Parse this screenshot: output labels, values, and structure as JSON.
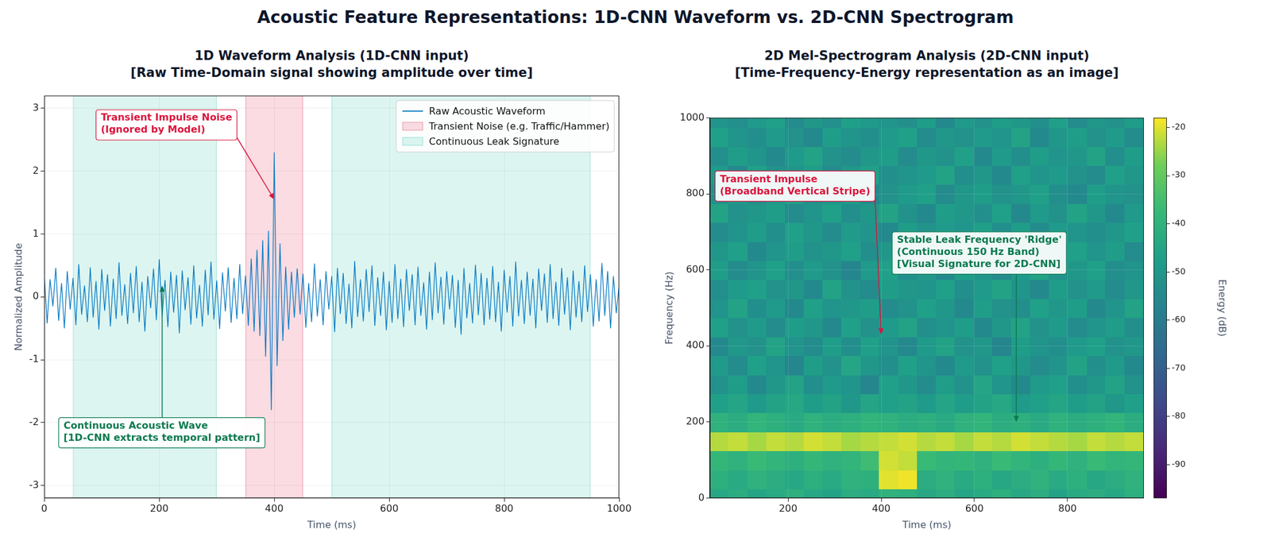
{
  "title": "Acoustic Feature Representations: 1D-CNN Waveform vs. 2D-CNN Spectrogram",
  "chart_data": [
    {
      "type": "line",
      "title": "1D Waveform Analysis (1D-CNN input)",
      "subtitle": "[Raw Time-Domain signal showing amplitude over time]",
      "x_label": "Time (ms)",
      "y_label": "Normalized Amplitude",
      "x": [
        0,
        5,
        10,
        15,
        20,
        25,
        30,
        35,
        40,
        45,
        50,
        55,
        60,
        65,
        70,
        75,
        80,
        85,
        90,
        95,
        100,
        105,
        110,
        115,
        120,
        125,
        130,
        135,
        140,
        145,
        150,
        155,
        160,
        165,
        170,
        175,
        180,
        185,
        190,
        195,
        200,
        205,
        210,
        215,
        220,
        225,
        230,
        235,
        240,
        245,
        250,
        255,
        260,
        265,
        270,
        275,
        280,
        285,
        290,
        295,
        300,
        305,
        310,
        315,
        320,
        325,
        330,
        335,
        340,
        345,
        350,
        355,
        360,
        365,
        370,
        375,
        380,
        385,
        390,
        395,
        400,
        405,
        410,
        415,
        420,
        425,
        430,
        435,
        440,
        445,
        450,
        455,
        460,
        465,
        470,
        475,
        480,
        485,
        490,
        495,
        500,
        505,
        510,
        515,
        520,
        525,
        530,
        535,
        540,
        545,
        550,
        555,
        560,
        565,
        570,
        575,
        580,
        585,
        590,
        595,
        600,
        605,
        610,
        615,
        620,
        625,
        630,
        635,
        640,
        645,
        650,
        655,
        660,
        665,
        670,
        675,
        680,
        685,
        690,
        695,
        700,
        705,
        710,
        715,
        720,
        725,
        730,
        735,
        740,
        745,
        750,
        755,
        760,
        765,
        770,
        775,
        780,
        785,
        790,
        795,
        800,
        805,
        810,
        815,
        820,
        825,
        830,
        835,
        840,
        845,
        850,
        855,
        860,
        865,
        870,
        875,
        880,
        885,
        890,
        895,
        900,
        905,
        910,
        915,
        920,
        925,
        930,
        935,
        940,
        945,
        950,
        955,
        960,
        965,
        970,
        975,
        980,
        985,
        990,
        995,
        1000
      ],
      "series": [
        {
          "name": "Raw Acoustic Waveform",
          "color": "#0a7bc4",
          "values": [
            0.35,
            -0.42,
            0.28,
            -0.15,
            0.46,
            -0.38,
            0.22,
            -0.5,
            0.41,
            -0.2,
            0.3,
            -0.45,
            0.52,
            -0.28,
            0.18,
            -0.4,
            0.47,
            -0.33,
            0.25,
            -0.52,
            0.44,
            -0.22,
            0.36,
            -0.47,
            0.29,
            -0.35,
            0.55,
            -0.3,
            0.2,
            -0.43,
            0.38,
            -0.26,
            0.49,
            -0.4,
            0.24,
            -0.55,
            0.33,
            -0.18,
            0.45,
            -0.37,
            0.6,
            -0.3,
            0.27,
            -0.48,
            0.4,
            -0.25,
            0.35,
            -0.58,
            0.42,
            -0.21,
            0.31,
            -0.44,
            0.5,
            -0.34,
            0.19,
            -0.47,
            0.43,
            -0.29,
            0.56,
            -0.36,
            0.26,
            -0.51,
            0.39,
            -0.23,
            0.47,
            -0.41,
            0.3,
            -0.35,
            0.52,
            -0.27,
            0.34,
            -0.46,
            0.61,
            -0.55,
            0.75,
            -0.62,
            0.9,
            -0.95,
            1.05,
            -1.8,
            2.3,
            -1.1,
            0.85,
            -0.7,
            0.48,
            -0.52,
            0.4,
            -0.33,
            0.45,
            -0.28,
            0.37,
            -0.49,
            0.22,
            -0.4,
            0.53,
            -0.31,
            0.28,
            -0.45,
            0.41,
            -0.2,
            0.33,
            -0.56,
            0.46,
            -0.27,
            0.38,
            -0.43,
            0.21,
            -0.5,
            0.57,
            -0.32,
            0.28,
            -0.39,
            0.44,
            -0.24,
            0.5,
            -0.46,
            0.31,
            -0.3,
            0.4,
            -0.53,
            0.25,
            -0.41,
            0.52,
            -0.35,
            0.29,
            -0.48,
            0.44,
            -0.22,
            0.36,
            -0.45,
            0.48,
            -0.3,
            0.23,
            -0.52,
            0.4,
            -0.37,
            0.55,
            -0.26,
            0.32,
            -0.44,
            0.41,
            -0.2,
            0.35,
            -0.49,
            0.27,
            -0.6,
            0.46,
            -0.34,
            0.22,
            -0.42,
            0.51,
            -0.29,
            0.38,
            -0.45,
            0.3,
            -0.36,
            0.49,
            -0.4,
            0.24,
            -0.55,
            0.43,
            -0.25,
            0.33,
            -0.47,
            0.56,
            -0.31,
            0.27,
            -0.43,
            0.4,
            -0.3,
            0.29,
            -0.5,
            0.45,
            -0.22,
            0.37,
            -0.41,
            0.52,
            -0.35,
            0.24,
            -0.46,
            0.46,
            -0.28,
            0.31,
            -0.53,
            0.42,
            -0.33,
            0.25,
            -0.4,
            0.5,
            -0.24,
            0.36,
            -0.47,
            0.28,
            -0.39,
            0.54,
            -0.3,
            0.41,
            -0.5,
            0.33,
            -0.26,
            0.2
          ]
        }
      ],
      "regions": [
        {
          "name": "Transient Noise (e.g. Traffic/Hammer)",
          "color": "#dc143c",
          "spans": [
            [
              350,
              450
            ]
          ]
        },
        {
          "name": "Continuous Leak Signature",
          "color": "#1abc9c",
          "spans": [
            [
              50,
              300
            ],
            [
              500,
              950
            ]
          ]
        }
      ],
      "annotations": [
        {
          "text": "Transient Impulse Noise\n(Ignored by Model)",
          "color": "#dc143c",
          "points_to": [
            400,
            1.55
          ]
        },
        {
          "text": "Continuous Acoustic Wave\n[1D-CNN extracts temporal pattern]",
          "color": "#0b7a50",
          "points_to": [
            205,
            0.18
          ]
        }
      ],
      "xlim": [
        0,
        1000
      ],
      "xticks": [
        0,
        200,
        400,
        600,
        800,
        1000
      ],
      "ylim": [
        -3.2,
        3.2
      ],
      "yticks": [
        -3,
        -2,
        -1,
        0,
        1,
        2,
        3
      ],
      "grid": true,
      "legend": "upper right"
    },
    {
      "type": "heatmap",
      "title": "2D Mel-Spectrogram Analysis (2D-CNN input)",
      "subtitle": "[Time-Frequency-Energy representation as an image]",
      "x_label": "Time (ms)",
      "y_label": "Frequency (Hz)",
      "x_edges": [
        32,
        72,
        113,
        153,
        194,
        234,
        275,
        315,
        356,
        396,
        437,
        477,
        518,
        558,
        599,
        639,
        680,
        720,
        761,
        801,
        842,
        882,
        923,
        964
      ],
      "y_edges": [
        0,
        25,
        75,
        125,
        175,
        225,
        275,
        325,
        375,
        425,
        475,
        525,
        575,
        625,
        675,
        725,
        775,
        825,
        875,
        925,
        975,
        1000
      ],
      "cells": [
        [
          -44,
          -42,
          -45,
          -43,
          -41,
          -44,
          -46,
          -42,
          -43,
          -40,
          -41,
          -44,
          -42,
          -45,
          -43,
          -41,
          -44,
          -42,
          -46,
          -43,
          -42,
          -44,
          -41
        ],
        [
          -41,
          -43,
          -40,
          -42,
          -44,
          -41,
          -43,
          -40,
          -41,
          -20,
          -19,
          -42,
          -40,
          -43,
          -41,
          -44,
          -42,
          -40,
          -43,
          -41,
          -44,
          -42,
          -40
        ],
        [
          -38,
          -40,
          -37,
          -39,
          -41,
          -38,
          -40,
          -39,
          -36,
          -21,
          -22,
          -37,
          -39,
          -38,
          -40,
          -37,
          -39,
          -41,
          -38,
          -40,
          -37,
          -39,
          -38
        ],
        [
          -23,
          -22,
          -24,
          -22,
          -23,
          -21,
          -22,
          -24,
          -23,
          -22,
          -21,
          -23,
          -22,
          -24,
          -22,
          -23,
          -21,
          -22,
          -23,
          -24,
          -22,
          -23,
          -22
        ],
        [
          -40,
          -42,
          -39,
          -41,
          -43,
          -40,
          -42,
          -41,
          -39,
          -40,
          -42,
          -41,
          -43,
          -40,
          -39,
          -42,
          -41,
          -43,
          -40,
          -42,
          -41,
          -39,
          -42
        ],
        [
          -47,
          -45,
          -49,
          -46,
          -44,
          -48,
          -46,
          -50,
          -45,
          -47,
          -46,
          -49,
          -45,
          -48,
          -46,
          -44,
          -49,
          -47,
          -45,
          -48,
          -46,
          -50,
          -47
        ],
        [
          -52,
          -48,
          -55,
          -50,
          -46,
          -53,
          -49,
          -51,
          -56,
          -47,
          -50,
          -54,
          -48,
          -52,
          -45,
          -51,
          -55,
          -49,
          -47,
          -53,
          -50,
          -46,
          -52
        ],
        [
          -49,
          -54,
          -47,
          -51,
          -56,
          -48,
          -52,
          -45,
          -50,
          -53,
          -47,
          -51,
          -55,
          -49,
          -52,
          -47,
          -50,
          -54,
          -51,
          -46,
          -53,
          -49,
          -55
        ],
        [
          -55,
          -50,
          -52,
          -46,
          -51,
          -54,
          -48,
          -53,
          -47,
          -51,
          -55,
          -49,
          -46,
          -52,
          -50,
          -56,
          -48,
          -51,
          -53,
          -49,
          -47,
          -52,
          -50
        ],
        [
          -47,
          -52,
          -49,
          -54,
          -48,
          -50,
          -55,
          -47,
          -52,
          -49,
          -46,
          -53,
          -51,
          -48,
          -55,
          -50,
          -46,
          -52,
          -49,
          -54,
          -51,
          -48,
          -53
        ],
        [
          -51,
          -46,
          -53,
          -49,
          -55,
          -47,
          -51,
          -50,
          -48,
          -54,
          -52,
          -47,
          -50,
          -55,
          -48,
          -52,
          -53,
          -47,
          -50,
          -48,
          -55,
          -51,
          -46
        ],
        [
          -53,
          -49,
          -47,
          -52,
          -50,
          -55,
          -46,
          -52,
          -54,
          -48,
          -50,
          -51,
          -47,
          -53,
          -49,
          -46,
          -51,
          -55,
          -48,
          -52,
          -49,
          -54,
          -50
        ],
        [
          -48,
          -54,
          -51,
          -47,
          -53,
          -49,
          -52,
          -56,
          -49,
          -47,
          -53,
          -50,
          -55,
          -48,
          -51,
          -54,
          -49,
          -46,
          -52,
          -50,
          -47,
          -53,
          -51
        ],
        [
          -50,
          -47,
          -55,
          -51,
          -48,
          -52,
          -50,
          -47,
          -53,
          -50,
          -55,
          -48,
          -52,
          -46,
          -54,
          -49,
          -52,
          -50,
          -55,
          -47,
          -51,
          -48,
          -54
        ],
        [
          -54,
          -51,
          -48,
          -53,
          -47,
          -50,
          -54,
          -49,
          -51,
          -55,
          -48,
          -52,
          -49,
          -51,
          -47,
          -53,
          -48,
          -54,
          -49,
          -51,
          -53,
          -50,
          -47
        ],
        [
          -46,
          -52,
          -50,
          -48,
          -54,
          -51,
          -47,
          -53,
          -50,
          -46,
          -52,
          -55,
          -48,
          -50,
          -53,
          -47,
          -55,
          -49,
          -52,
          -46,
          -50,
          -55,
          -49
        ],
        [
          -52,
          -49,
          -54,
          -50,
          -47,
          -53,
          -51,
          -48,
          -55,
          -52,
          -49,
          -47,
          -54,
          -50,
          -48,
          -52,
          -50,
          -47,
          -53,
          -55,
          -48,
          -51,
          -52
        ],
        [
          -49,
          -55,
          -47,
          -52,
          -51,
          -48,
          -54,
          -50,
          -47,
          -53,
          -51,
          -49,
          -46,
          -53,
          -50,
          -55,
          -47,
          -51,
          -49,
          -52,
          -54,
          -47,
          -50
        ],
        [
          -53,
          -48,
          -51,
          -55,
          -49,
          -46,
          -52,
          -54,
          -50,
          -48,
          -54,
          -50,
          -52,
          -47,
          -55,
          -49,
          -53,
          -48,
          -51,
          -50,
          -46,
          -53,
          -48
        ],
        [
          -47,
          -51,
          -53,
          -49,
          -52,
          -55,
          -48,
          -51,
          -53,
          -49,
          -47,
          -54,
          -50,
          -52,
          -49,
          -51,
          -46,
          -55,
          -50,
          -48,
          -52,
          -49,
          -54
        ],
        [
          -51,
          -53,
          -49,
          -47,
          -54,
          -50,
          -53,
          -47,
          -49,
          -51,
          -53,
          -48,
          -55,
          -49,
          -52,
          -48,
          -50,
          -53,
          -47,
          -54,
          -50,
          -52,
          -48
        ]
      ],
      "colorbar": {
        "label": "Energy (dB)",
        "range": [
          -97,
          -18
        ],
        "ticks": [
          -90,
          -80,
          -70,
          -60,
          -50,
          -40,
          -30,
          -20
        ]
      },
      "annotations": [
        {
          "text": "Transient Impulse\n(Broadband Vertical Stripe)",
          "color": "#dc143c",
          "points_to": [
            400,
            430
          ]
        },
        {
          "text": "Stable Leak Frequency 'Ridge'\n(Continuous 150 Hz Band)\n[Visual Signature for 2D-CNN]",
          "color": "#0b7a50",
          "points_to": [
            690,
            200
          ]
        }
      ],
      "xlim": [
        32,
        964
      ],
      "xticks": [
        200,
        400,
        600,
        800
      ],
      "ylim": [
        0,
        1000
      ],
      "yticks": [
        0,
        200,
        400,
        600,
        800,
        1000
      ],
      "grid": true
    }
  ]
}
